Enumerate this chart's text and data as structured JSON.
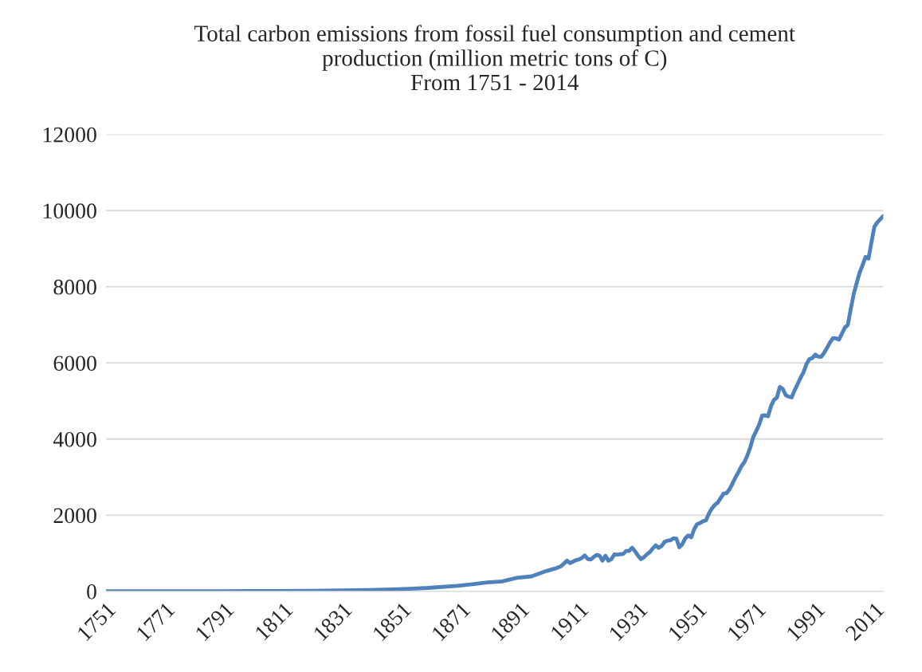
{
  "chart_data": {
    "type": "line",
    "title": "Total carbon emissions from fossil fuel consumption and cement\nproduction (million metric tons of C)\nFrom 1751 - 2014",
    "x": [
      1751,
      1770,
      1790,
      1800,
      1810,
      1820,
      1830,
      1840,
      1850,
      1860,
      1870,
      1875,
      1880,
      1885,
      1890,
      1895,
      1900,
      1903,
      1905,
      1907,
      1908,
      1910,
      1911,
      1912,
      1913,
      1914,
      1915,
      1916,
      1917,
      1918,
      1919,
      1920,
      1921,
      1922,
      1923,
      1924,
      1925,
      1926,
      1927,
      1928,
      1929,
      1930,
      1931,
      1932,
      1933,
      1934,
      1935,
      1936,
      1937,
      1938,
      1939,
      1940,
      1941,
      1942,
      1943,
      1944,
      1945,
      1946,
      1947,
      1948,
      1949,
      1950,
      1951,
      1952,
      1953,
      1954,
      1955,
      1956,
      1957,
      1958,
      1959,
      1960,
      1961,
      1962,
      1963,
      1964,
      1965,
      1966,
      1967,
      1968,
      1969,
      1970,
      1971,
      1972,
      1973,
      1974,
      1975,
      1976,
      1977,
      1978,
      1979,
      1980,
      1981,
      1982,
      1983,
      1984,
      1985,
      1986,
      1987,
      1988,
      1989,
      1990,
      1991,
      1992,
      1993,
      1994,
      1995,
      1996,
      1997,
      1998,
      1999,
      2000,
      2001,
      2002,
      2003,
      2004,
      2005,
      2006,
      2007,
      2008,
      2009,
      2010,
      2011,
      2012,
      2013,
      2014
    ],
    "series": [
      {
        "color": "#4f81bd",
        "values": [
          3,
          3,
          5,
          8,
          10,
          14,
          24,
          33,
          54,
          91,
          147,
          188,
          236,
          260,
          356,
          394,
          534,
          600,
          663,
          805,
          743,
          819,
          836,
          879,
          943,
          850,
          838,
          901,
          955,
          936,
          806,
          932,
          803,
          845,
          970,
          963,
          975,
          983,
          1062,
          1065,
          1145,
          1053,
          940,
          847,
          893,
          973,
          1027,
          1130,
          1209,
          1142,
          1192,
          1299,
          1334,
          1342,
          1391,
          1383,
          1160,
          1238,
          1392,
          1469,
          1419,
          1630,
          1767,
          1795,
          1841,
          1865,
          2042,
          2177,
          2270,
          2330,
          2454,
          2569,
          2580,
          2686,
          2833,
          2995,
          3130,
          3288,
          3393,
          3566,
          3780,
          4053,
          4208,
          4376,
          4614,
          4623,
          4596,
          4864,
          5026,
          5087,
          5369,
          5315,
          5152,
          5113,
          5094,
          5280,
          5439,
          5607,
          5752,
          5965,
          6097,
          6127,
          6217,
          6164,
          6162,
          6266,
          6398,
          6542,
          6651,
          6643,
          6610,
          6765,
          6927,
          6996,
          7416,
          7807,
          8093,
          8370,
          8566,
          8783,
          8740,
          9167,
          9576,
          9689,
          9776,
          9855
        ]
      }
    ],
    "xlim": [
      1751,
      2014
    ],
    "xticks": [
      1751,
      1771,
      1791,
      1811,
      1831,
      1851,
      1871,
      1891,
      1911,
      1931,
      1951,
      1971,
      1991,
      2011
    ],
    "ylim": [
      0,
      12000
    ],
    "yticks": [
      0,
      2000,
      4000,
      6000,
      8000,
      10000,
      12000
    ],
    "grid": "y",
    "legend": false,
    "marker": "none",
    "line_style": "solid"
  }
}
